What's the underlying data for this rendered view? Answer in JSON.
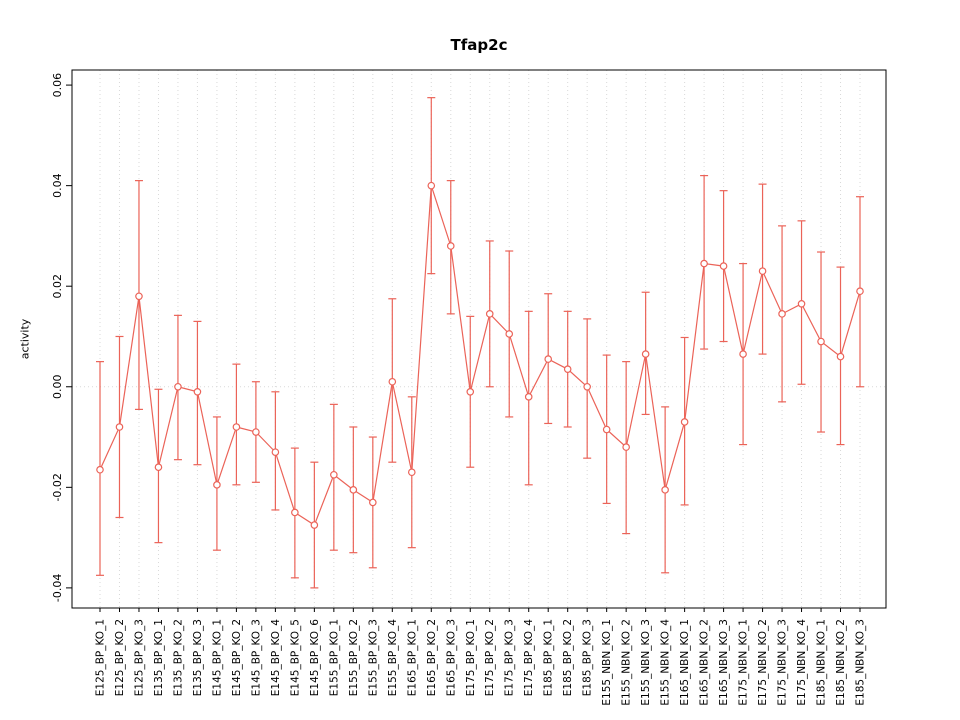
{
  "chart_data": {
    "type": "line",
    "title": "Tfap2c",
    "xlabel": "",
    "ylabel": "activity",
    "ylim": [
      -0.044,
      0.063
    ],
    "grid": "dotted vertical gridline at each category; dotted horizontal line at y=0",
    "legend": "none",
    "color": "#eb6358",
    "grid_color": "#d9d9d9",
    "yticks": [
      {
        "value": -0.04,
        "label": "-0.04"
      },
      {
        "value": -0.02,
        "label": "-0.02"
      },
      {
        "value": 0.0,
        "label": "0.00"
      },
      {
        "value": 0.02,
        "label": "0.02"
      },
      {
        "value": 0.04,
        "label": "0.04"
      },
      {
        "value": 0.06,
        "label": "0.06"
      }
    ],
    "categories": [
      "E125_BP_KO_1",
      "E125_BP_KO_2",
      "E125_BP_KO_3",
      "E135_BP_KO_1",
      "E135_BP_KO_2",
      "E135_BP_KO_3",
      "E145_BP_KO_1",
      "E145_BP_KO_2",
      "E145_BP_KO_3",
      "E145_BP_KO_4",
      "E145_BP_KO_5",
      "E145_BP_KO_6",
      "E155_BP_KO_1",
      "E155_BP_KO_2",
      "E155_BP_KO_3",
      "E155_BP_KO_4",
      "E165_BP_KO_1",
      "E165_BP_KO_2",
      "E165_BP_KO_3",
      "E175_BP_KO_1",
      "E175_BP_KO_2",
      "E175_BP_KO_3",
      "E175_BP_KO_4",
      "E185_BP_KO_1",
      "E185_BP_KO_2",
      "E185_BP_KO_3",
      "E155_NBN_KO_1",
      "E155_NBN_KO_2",
      "E155_NBN_KO_3",
      "E155_NBN_KO_4",
      "E165_NBN_KO_1",
      "E165_NBN_KO_2",
      "E165_NBN_KO_3",
      "E175_NBN_KO_1",
      "E175_NBN_KO_2",
      "E175_NBN_KO_3",
      "E175_NBN_KO_4",
      "E185_NBN_KO_1",
      "E185_NBN_KO_2",
      "E185_NBN_KO_3"
    ],
    "series": [
      {
        "name": "activity",
        "values": [
          -0.0165,
          -0.008,
          0.018,
          -0.016,
          0.0,
          -0.001,
          -0.0195,
          -0.008,
          -0.009,
          -0.013,
          -0.025,
          -0.0275,
          -0.0175,
          -0.0205,
          -0.023,
          0.001,
          -0.017,
          0.04,
          0.028,
          -0.001,
          0.0145,
          0.0105,
          -0.002,
          0.0055,
          0.0035,
          0.0,
          -0.0085,
          -0.012,
          0.0065,
          -0.0205,
          -0.007,
          0.0245,
          0.024,
          0.0065,
          0.023,
          0.0145,
          0.0165,
          0.009,
          0.006,
          0.019
        ],
        "ci_low": [
          -0.0375,
          -0.026,
          -0.0045,
          -0.031,
          -0.0145,
          -0.0155,
          -0.0325,
          -0.0195,
          -0.019,
          -0.0245,
          -0.038,
          -0.04,
          -0.0325,
          -0.033,
          -0.036,
          -0.015,
          -0.032,
          0.0225,
          0.0145,
          -0.016,
          0.0,
          -0.006,
          -0.0195,
          -0.0073,
          -0.008,
          -0.0142,
          -0.0232,
          -0.0292,
          -0.0055,
          -0.037,
          -0.0235,
          0.0075,
          0.009,
          -0.0115,
          0.0065,
          -0.003,
          0.0005,
          -0.009,
          -0.0115,
          0.0
        ],
        "ci_high": [
          0.005,
          0.01,
          0.041,
          -0.0005,
          0.0142,
          0.013,
          -0.006,
          0.0045,
          0.001,
          -0.001,
          -0.0122,
          -0.015,
          -0.0035,
          -0.008,
          -0.01,
          0.0175,
          -0.002,
          0.0575,
          0.041,
          0.014,
          0.029,
          0.027,
          0.015,
          0.0185,
          0.015,
          0.0135,
          0.0063,
          0.005,
          0.0188,
          -0.004,
          0.0098,
          0.042,
          0.039,
          0.0245,
          0.0403,
          0.032,
          0.033,
          0.0268,
          0.0238,
          0.0378
        ]
      }
    ]
  }
}
